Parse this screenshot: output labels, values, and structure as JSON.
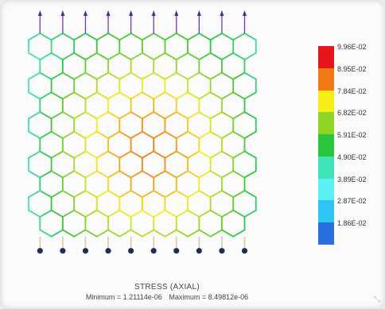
{
  "legend": {
    "colors": [
      "#e8161c",
      "#f07a14",
      "#f6ee19",
      "#8fd624",
      "#2bc43c",
      "#3ee3b9",
      "#5bf0f4",
      "#2fc4f2",
      "#2a6fe0"
    ],
    "labels": [
      "9.96E-02",
      "8.95E-02",
      "7.84E-02",
      "6.82E-02",
      "5.91E-02",
      "4.90E-02",
      "3.89E-02",
      "2.87E-02",
      "1.86E-02"
    ]
  },
  "caption": {
    "title": "STRESS (AXIAL)",
    "minimum_text": "Minimum = 1.21114e-06",
    "maximum_text": "Maximum = 8.49812e-06"
  },
  "corner_icon": "expand-icon"
}
